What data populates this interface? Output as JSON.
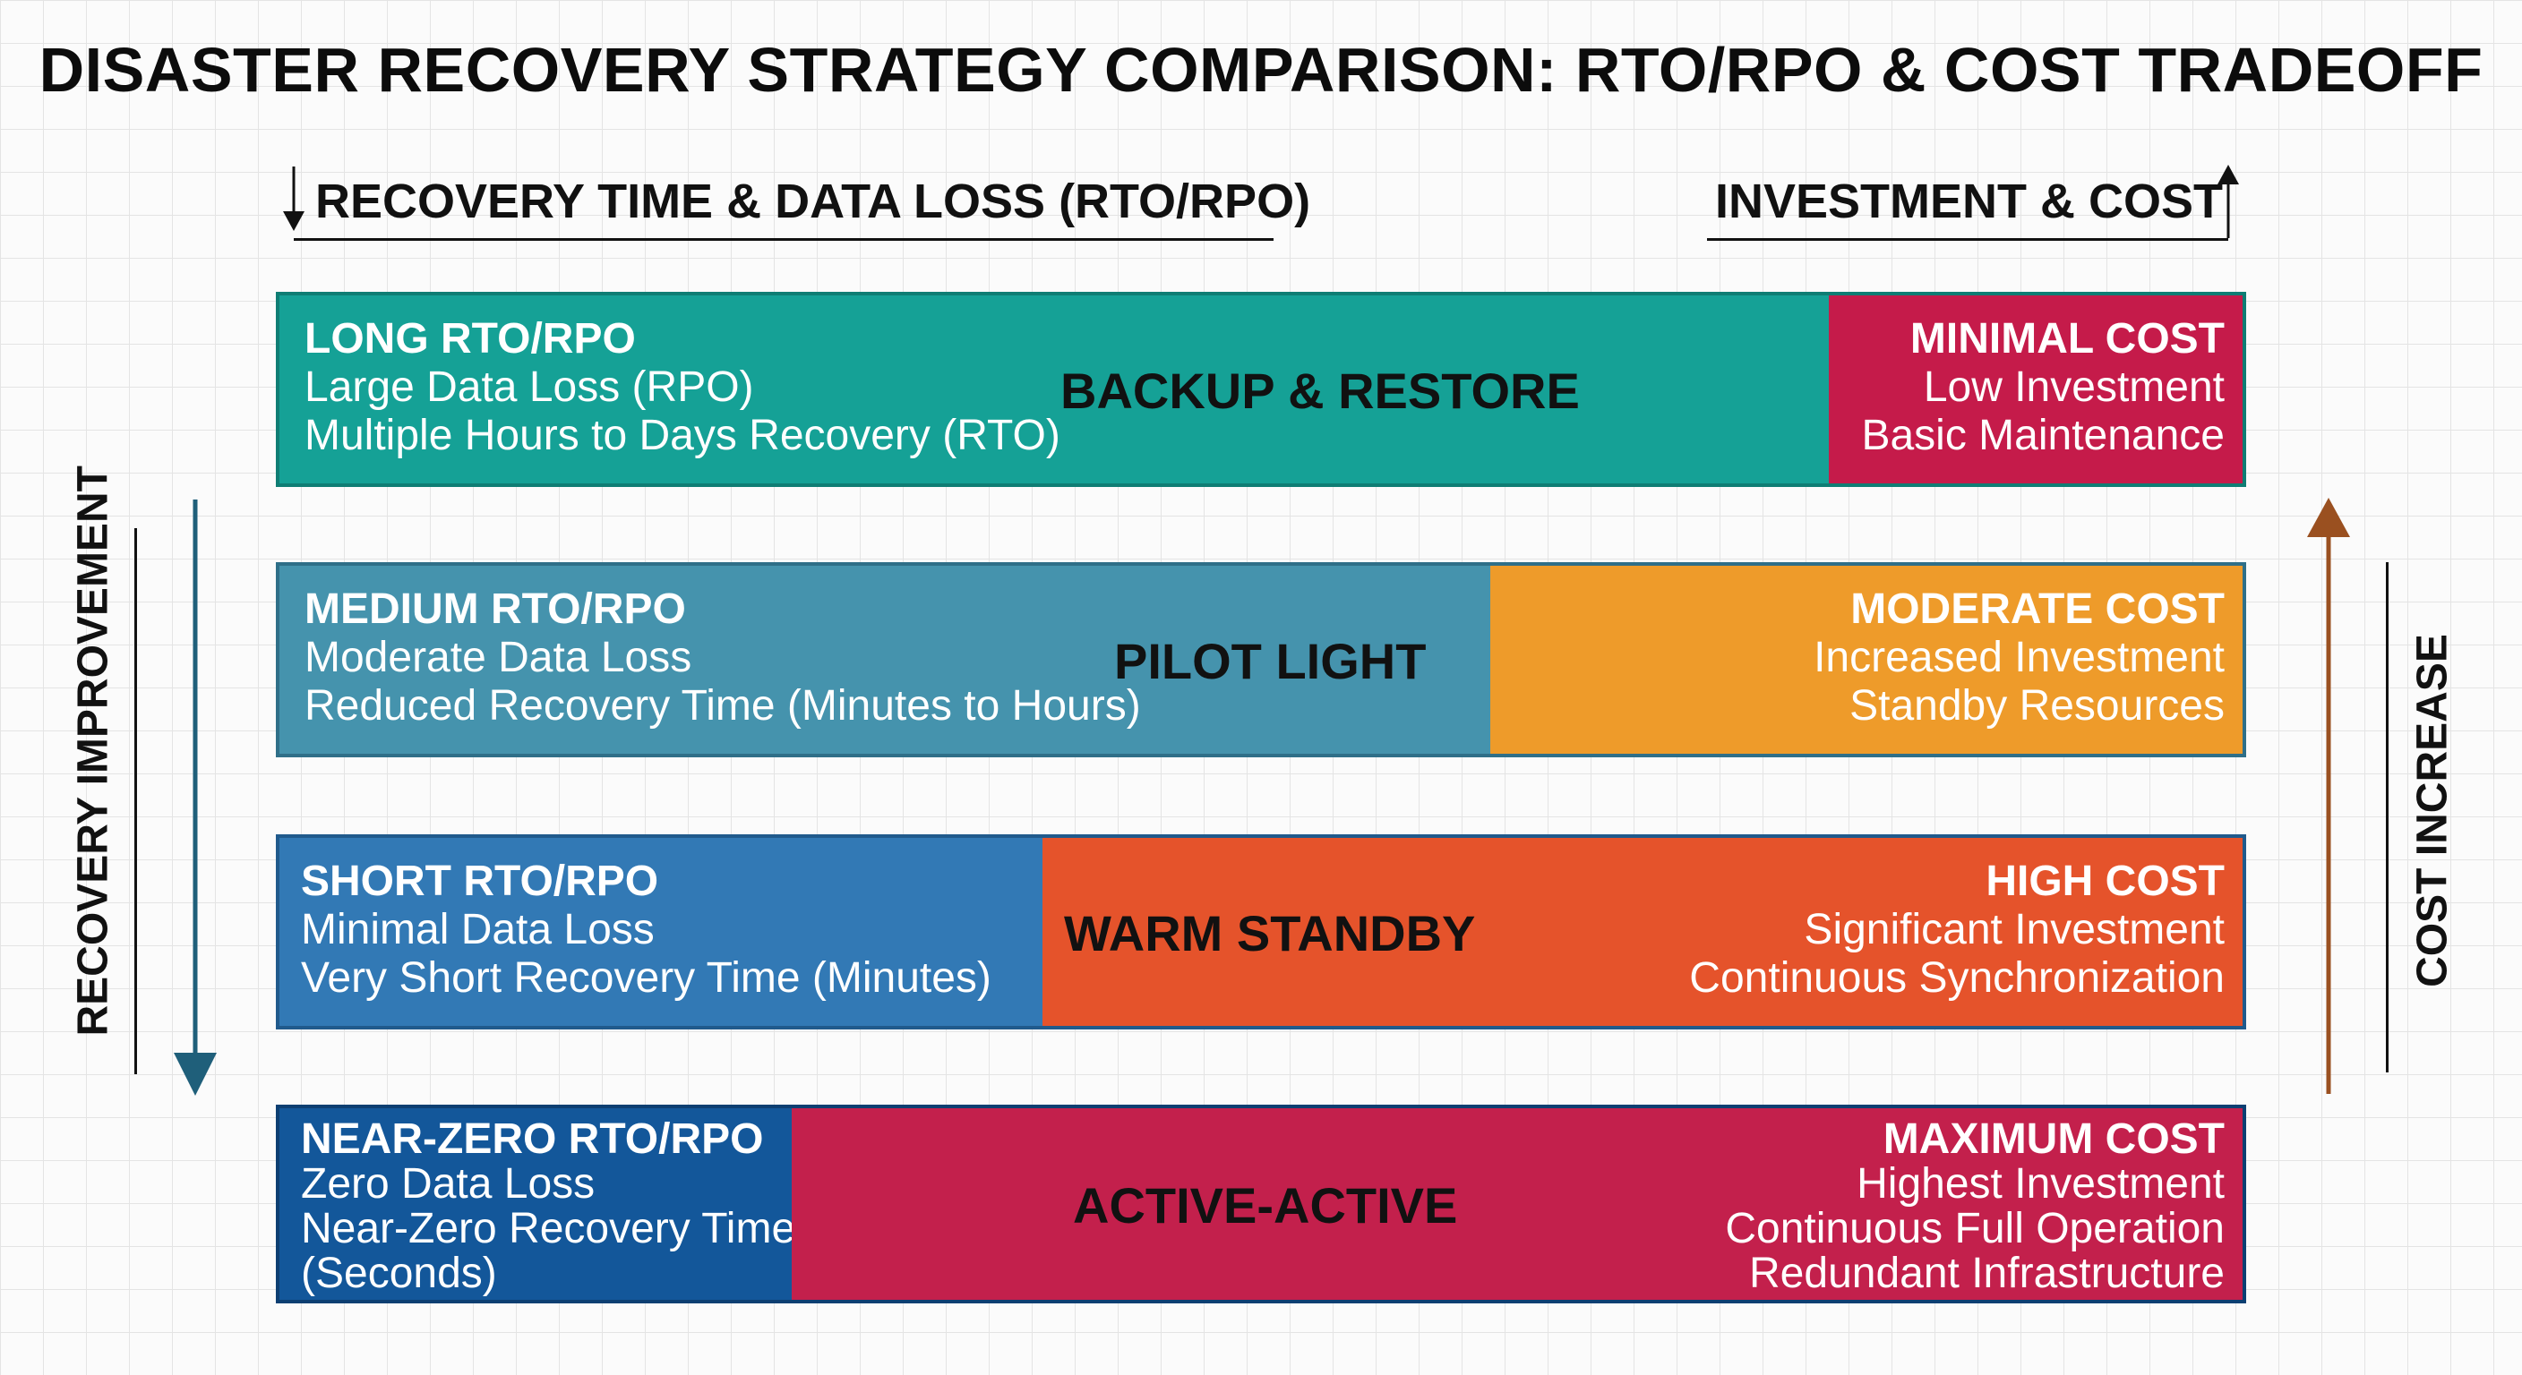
{
  "title": "DISASTER RECOVERY STRATEGY COMPARISON: RTO/RPO & COST TRADEOFF",
  "header_left": "RECOVERY TIME & DATA LOSS (RTO/RPO)",
  "header_right": "INVESTMENT & COST",
  "side_left": "RECOVERY IMPROVEMENT",
  "side_right": "COST INCREASE",
  "rows": [
    {
      "strategy": "BACKUP & RESTORE",
      "rto_title": "LONG RTO/RPO",
      "rto_line1": "Large Data Loss (RPO)",
      "rto_line2": "Multiple Hours to Days Recovery (RTO)",
      "cost_title": "MINIMAL COST",
      "cost_line1": "Low Investment",
      "cost_line2": "Basic Maintenance"
    },
    {
      "strategy": "PILOT LIGHT",
      "rto_title": "MEDIUM RTO/RPO",
      "rto_line1": "Moderate Data Loss",
      "rto_line2": "Reduced Recovery Time (Minutes to Hours)",
      "cost_title": "MODERATE COST",
      "cost_line1": "Increased Investment",
      "cost_line2": "Standby Resources"
    },
    {
      "strategy": "WARM STANDBY",
      "rto_title": "SHORT RTO/RPO",
      "rto_line1": "Minimal Data Loss",
      "rto_line2": "Very Short Recovery Time (Minutes)",
      "cost_title": "HIGH COST",
      "cost_line1": "Significant Investment",
      "cost_line2": "Continuous Synchronization"
    },
    {
      "strategy": "ACTIVE-ACTIVE",
      "rto_title": "NEAR-ZERO RTO/RPO",
      "rto_line1": "Zero Data Loss",
      "rto_line2": "Near-Zero Recovery Time",
      "rto_line3": "(Seconds)",
      "cost_title": "MAXIMUM COST",
      "cost_line1": "Highest Investment",
      "cost_line2": "Continuous Full Operation",
      "cost_line3": "Redundant Infrastructure"
    }
  ],
  "colors": {
    "backup_rto": "#15a196",
    "backup_cost": "#c51b4a",
    "pilot_rto": "#4593ad",
    "pilot_cost": "#ee9b2a",
    "warm_rto": "#3279b5",
    "warm_cost": "#e5532b",
    "active_rto": "#13579a",
    "active_cost": "#c3204c",
    "arrow_left": "#1f5f7a",
    "arrow_right": "#9a5020"
  }
}
